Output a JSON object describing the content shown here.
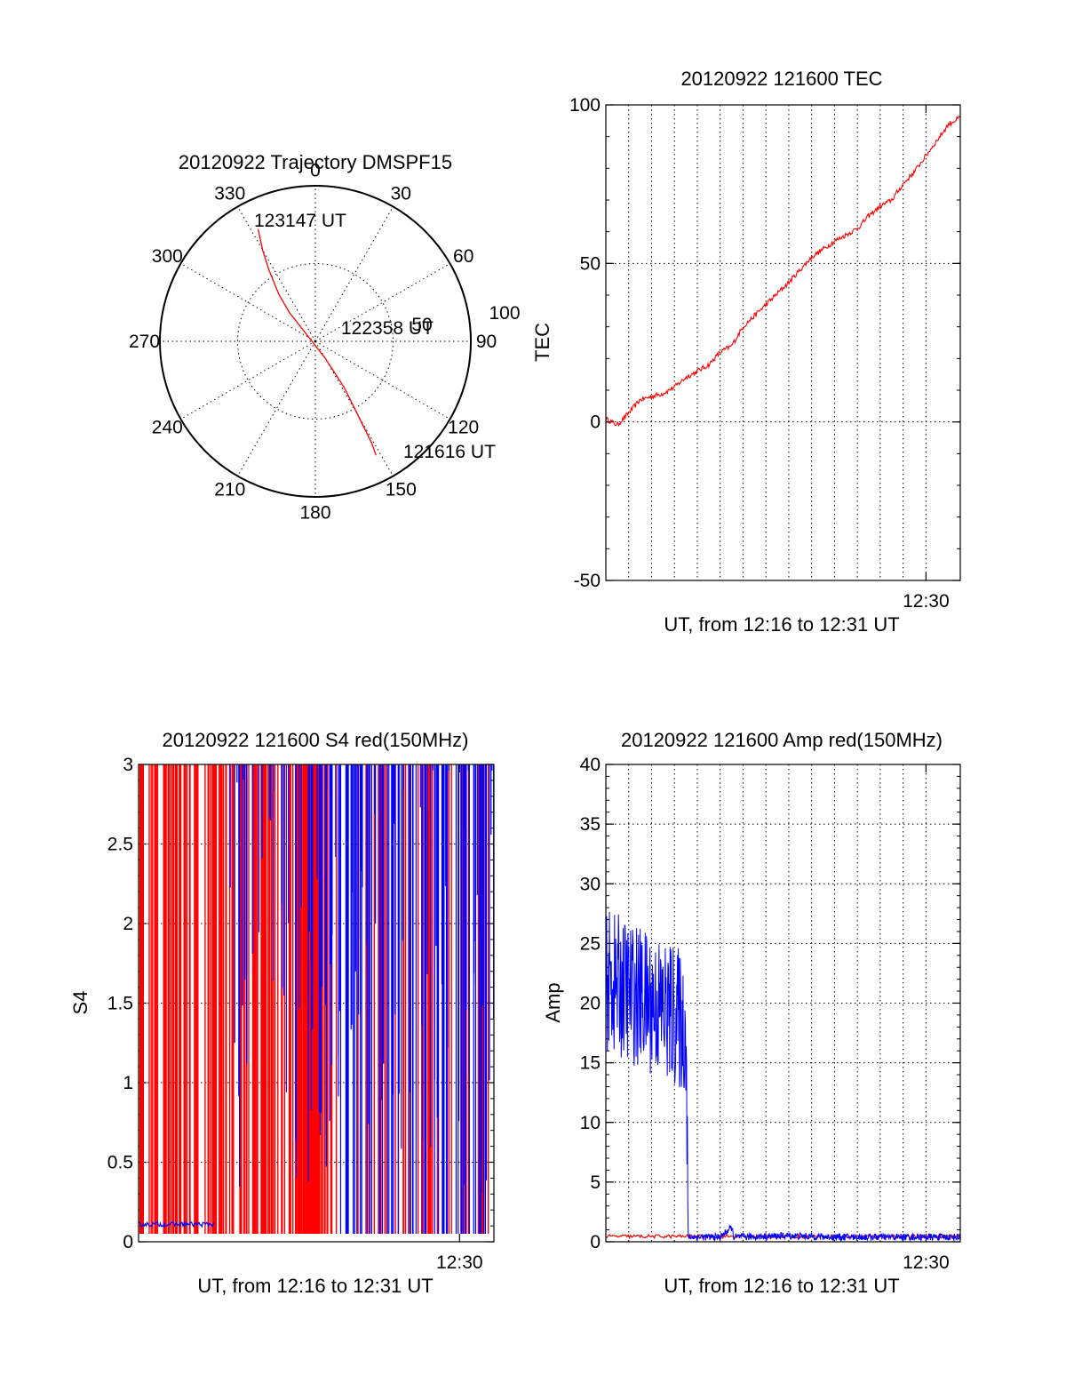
{
  "colors": {
    "red": "#ff0000",
    "blue": "#0000ff",
    "axis": "#000000"
  },
  "chart_data": [
    {
      "type": "polar",
      "title": "20120922 Trajectory DMSPF15",
      "azimuth_labels": [
        "0",
        "30",
        "60",
        "90",
        "120",
        "150",
        "180",
        "210",
        "240",
        "270",
        "300",
        "330"
      ],
      "azimuths": [
        0,
        30,
        60,
        90,
        120,
        150,
        180,
        210,
        240,
        270,
        300,
        330
      ],
      "radial_labels": [
        "50",
        "100"
      ],
      "radial_values": [
        50,
        100
      ],
      "radial_max": 100,
      "trajectory": {
        "color": "red",
        "points": [
          {
            "az": 333,
            "r": 81
          },
          {
            "az": 330,
            "r": 68
          },
          {
            "az": 327,
            "r": 55
          },
          {
            "az": 322,
            "r": 38
          },
          {
            "az": 318,
            "r": 25
          },
          {
            "az": 150,
            "r": 12
          },
          {
            "az": 148,
            "r": 35
          },
          {
            "az": 150,
            "r": 55
          },
          {
            "az": 151,
            "r": 75
          },
          {
            "az": 152,
            "r": 83
          }
        ]
      },
      "annotations": [
        {
          "text": "123147 UT",
          "az": 335,
          "r": 80
        },
        {
          "text": "122358 UT",
          "az": 70,
          "r": 33
        },
        {
          "text": "121616 UT",
          "az": 143,
          "r": 90
        }
      ]
    },
    {
      "type": "line",
      "title": "20120922 121600 TEC",
      "ylabel": "TEC",
      "xlabel": "UT, from 12:16 to 12:31 UT",
      "xlim": [
        0,
        15.5
      ],
      "ylim": [
        -50,
        100
      ],
      "yticks": [
        "100",
        "50",
        "0",
        "-50"
      ],
      "ytick_values": [
        100,
        50,
        0,
        -50
      ],
      "xticks": [
        "12:30"
      ],
      "xtick_values": [
        14
      ],
      "x_gridlines": [
        1,
        2,
        3,
        4,
        5,
        6,
        7,
        8,
        9,
        10,
        11,
        12,
        13,
        14
      ],
      "series": [
        {
          "color": "red",
          "x": [
            0,
            0.5,
            0.9,
            1.5,
            2.5,
            3.0,
            3.5,
            4.5,
            5.0,
            5.5,
            6.0,
            7.0,
            8.0,
            8.5,
            9.0,
            10.0,
            10.5,
            11.0,
            11.5,
            12.0,
            12.5,
            13.0,
            13.5,
            14.0,
            14.5,
            15.0,
            15.5
          ],
          "y": [
            1,
            -1,
            2,
            7,
            9,
            11,
            14,
            18,
            22,
            24,
            30,
            37,
            44,
            48,
            52,
            57,
            59,
            61,
            65,
            68,
            70,
            75,
            79,
            84,
            89,
            94,
            96
          ]
        }
      ]
    },
    {
      "type": "line",
      "title": "20120922 121600 S4 red(150MHz)",
      "ylabel": "S4",
      "xlabel": "UT, from 12:16 to 12:31 UT",
      "xlim": [
        0,
        15.5
      ],
      "ylim": [
        0,
        3
      ],
      "yticks": [
        "3",
        "2.5",
        "2",
        "1.5",
        "1",
        "0.5",
        "0"
      ],
      "ytick_values": [
        3,
        2.5,
        2,
        1.5,
        1,
        0.5,
        0
      ],
      "xticks": [
        "12:30"
      ],
      "xtick_values": [
        14
      ],
      "series": [
        {
          "color": "red",
          "x": [],
          "y": []
        },
        {
          "color": "blue",
          "x": [],
          "y": []
        }
      ]
    },
    {
      "type": "line",
      "title": "20120922 121600 Amp red(150MHz)",
      "ylabel": "Amp",
      "xlabel": "UT, from 12:16 to 12:31 UT",
      "xlim": [
        0,
        15.5
      ],
      "ylim": [
        0,
        40
      ],
      "yticks": [
        "40",
        "35",
        "30",
        "25",
        "20",
        "15",
        "10",
        "5",
        "0"
      ],
      "ytick_values": [
        40,
        35,
        30,
        25,
        20,
        15,
        10,
        5,
        0
      ],
      "xticks": [
        "12:30"
      ],
      "xtick_values": [
        14
      ],
      "x_gridlines": [
        1,
        2,
        3,
        4,
        5,
        6,
        7,
        8,
        9,
        10,
        11,
        12,
        13,
        14
      ],
      "series": [
        {
          "color": "blue",
          "x": [
            0,
            1,
            2,
            3,
            3.5,
            3.6,
            5,
            5.5,
            5.6,
            8,
            10,
            12,
            14,
            15.5
          ],
          "y": [
            22,
            21,
            20,
            19,
            18,
            0.4,
            0.4,
            1.2,
            0.4,
            0.5,
            0.4,
            0.4,
            0.4,
            0.4
          ]
        },
        {
          "color": "red",
          "x": [
            0,
            3.5
          ],
          "y": [
            0.3,
            0.3
          ]
        }
      ]
    }
  ]
}
